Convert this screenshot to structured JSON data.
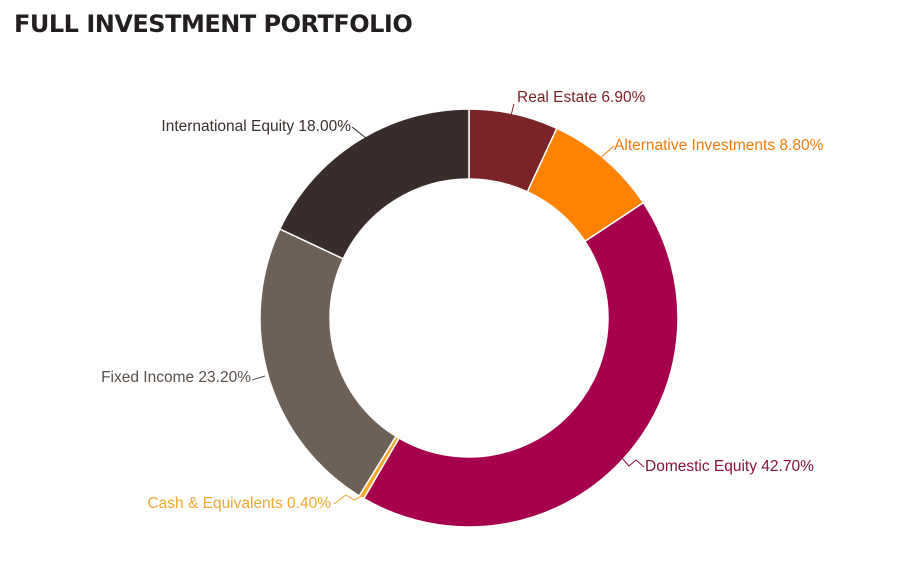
{
  "title": "FULL INVESTMENT PORTFOLIO",
  "chart_data": {
    "type": "pie",
    "variant": "donut",
    "title": "FULL INVESTMENT PORTFOLIO",
    "slices": [
      {
        "name": "Real Estate",
        "value": 6.9,
        "label": "Real Estate 6.90%",
        "color": "#7b2428",
        "label_color": "#7b2428"
      },
      {
        "name": "Alternative Investments",
        "value": 8.8,
        "label": "Alternative Investments 8.80%",
        "color": "#ff8200",
        "label_color": "#f07b10"
      },
      {
        "name": "Domestic Equity",
        "value": 42.7,
        "label": "Domestic Equity 42.70%",
        "color": "#a6004c",
        "label_color": "#8c1040"
      },
      {
        "name": "Cash & Equivalents",
        "value": 0.4,
        "label": "Cash & Equivalents 0.40%",
        "color": "#f5a623",
        "label_color": "#f0a830"
      },
      {
        "name": "Fixed Income",
        "value": 23.2,
        "label": "Fixed Income 23.20%",
        "color": "#6d6157",
        "label_color": "#5a504a"
      },
      {
        "name": "International Equity",
        "value": 18.0,
        "label": "International Equity 18.00%",
        "color": "#382d2b",
        "label_color": "#3a302c"
      }
    ]
  }
}
